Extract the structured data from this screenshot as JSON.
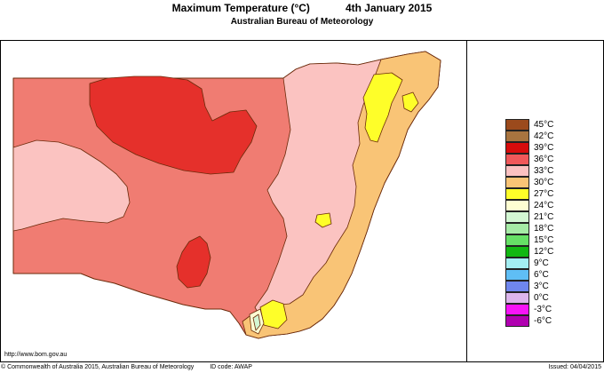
{
  "header": {
    "title": "Maximum Temperature (°C)",
    "date": "4th January 2015",
    "subtitle": "Australian Bureau of Meteorology"
  },
  "legend": [
    {
      "label": "45°C",
      "color": "#9b4a1c"
    },
    {
      "label": "42°C",
      "color": "#a8743f"
    },
    {
      "label": "39°C",
      "color": "#d70c0c"
    },
    {
      "label": "36°C",
      "color": "#f0585a"
    },
    {
      "label": "33°C",
      "color": "#fbc1c1"
    },
    {
      "label": "30°C",
      "color": "#f9c476"
    },
    {
      "label": "27°C",
      "color": "#fefe29"
    },
    {
      "label": "24°C",
      "color": "#fefed2"
    },
    {
      "label": "21°C",
      "color": "#d3f7d3"
    },
    {
      "label": "18°C",
      "color": "#a6eba6"
    },
    {
      "label": "15°C",
      "color": "#66e066"
    },
    {
      "label": "12°C",
      "color": "#12b812"
    },
    {
      "label": "9°C",
      "color": "#a3eef2"
    },
    {
      "label": "6°C",
      "color": "#5fbef5"
    },
    {
      "label": "3°C",
      "color": "#6f86ee"
    },
    {
      "label": "0°C",
      "color": "#dcb6ec"
    },
    {
      "label": "-3°C",
      "color": "#f714f7"
    },
    {
      "label": "-6°C",
      "color": "#b000b0"
    }
  ],
  "footer": {
    "url": "http://www.bom.gov.au",
    "copyright": "© Commonwealth of Australia 2015, Australian Bureau of Meteorology",
    "id_code": "ID code: AWAP",
    "issued": "Issued: 04/04/2015"
  },
  "map_colors": {
    "band_36": "#f07c72",
    "band_39": "#e5302b",
    "band_33": "#fbc3c1",
    "band_30": "#f9c476",
    "band_27": "#fefe29",
    "band_24": "#fefed2",
    "band_21": "#d3f7d3",
    "outline": "#6b2a0a"
  }
}
